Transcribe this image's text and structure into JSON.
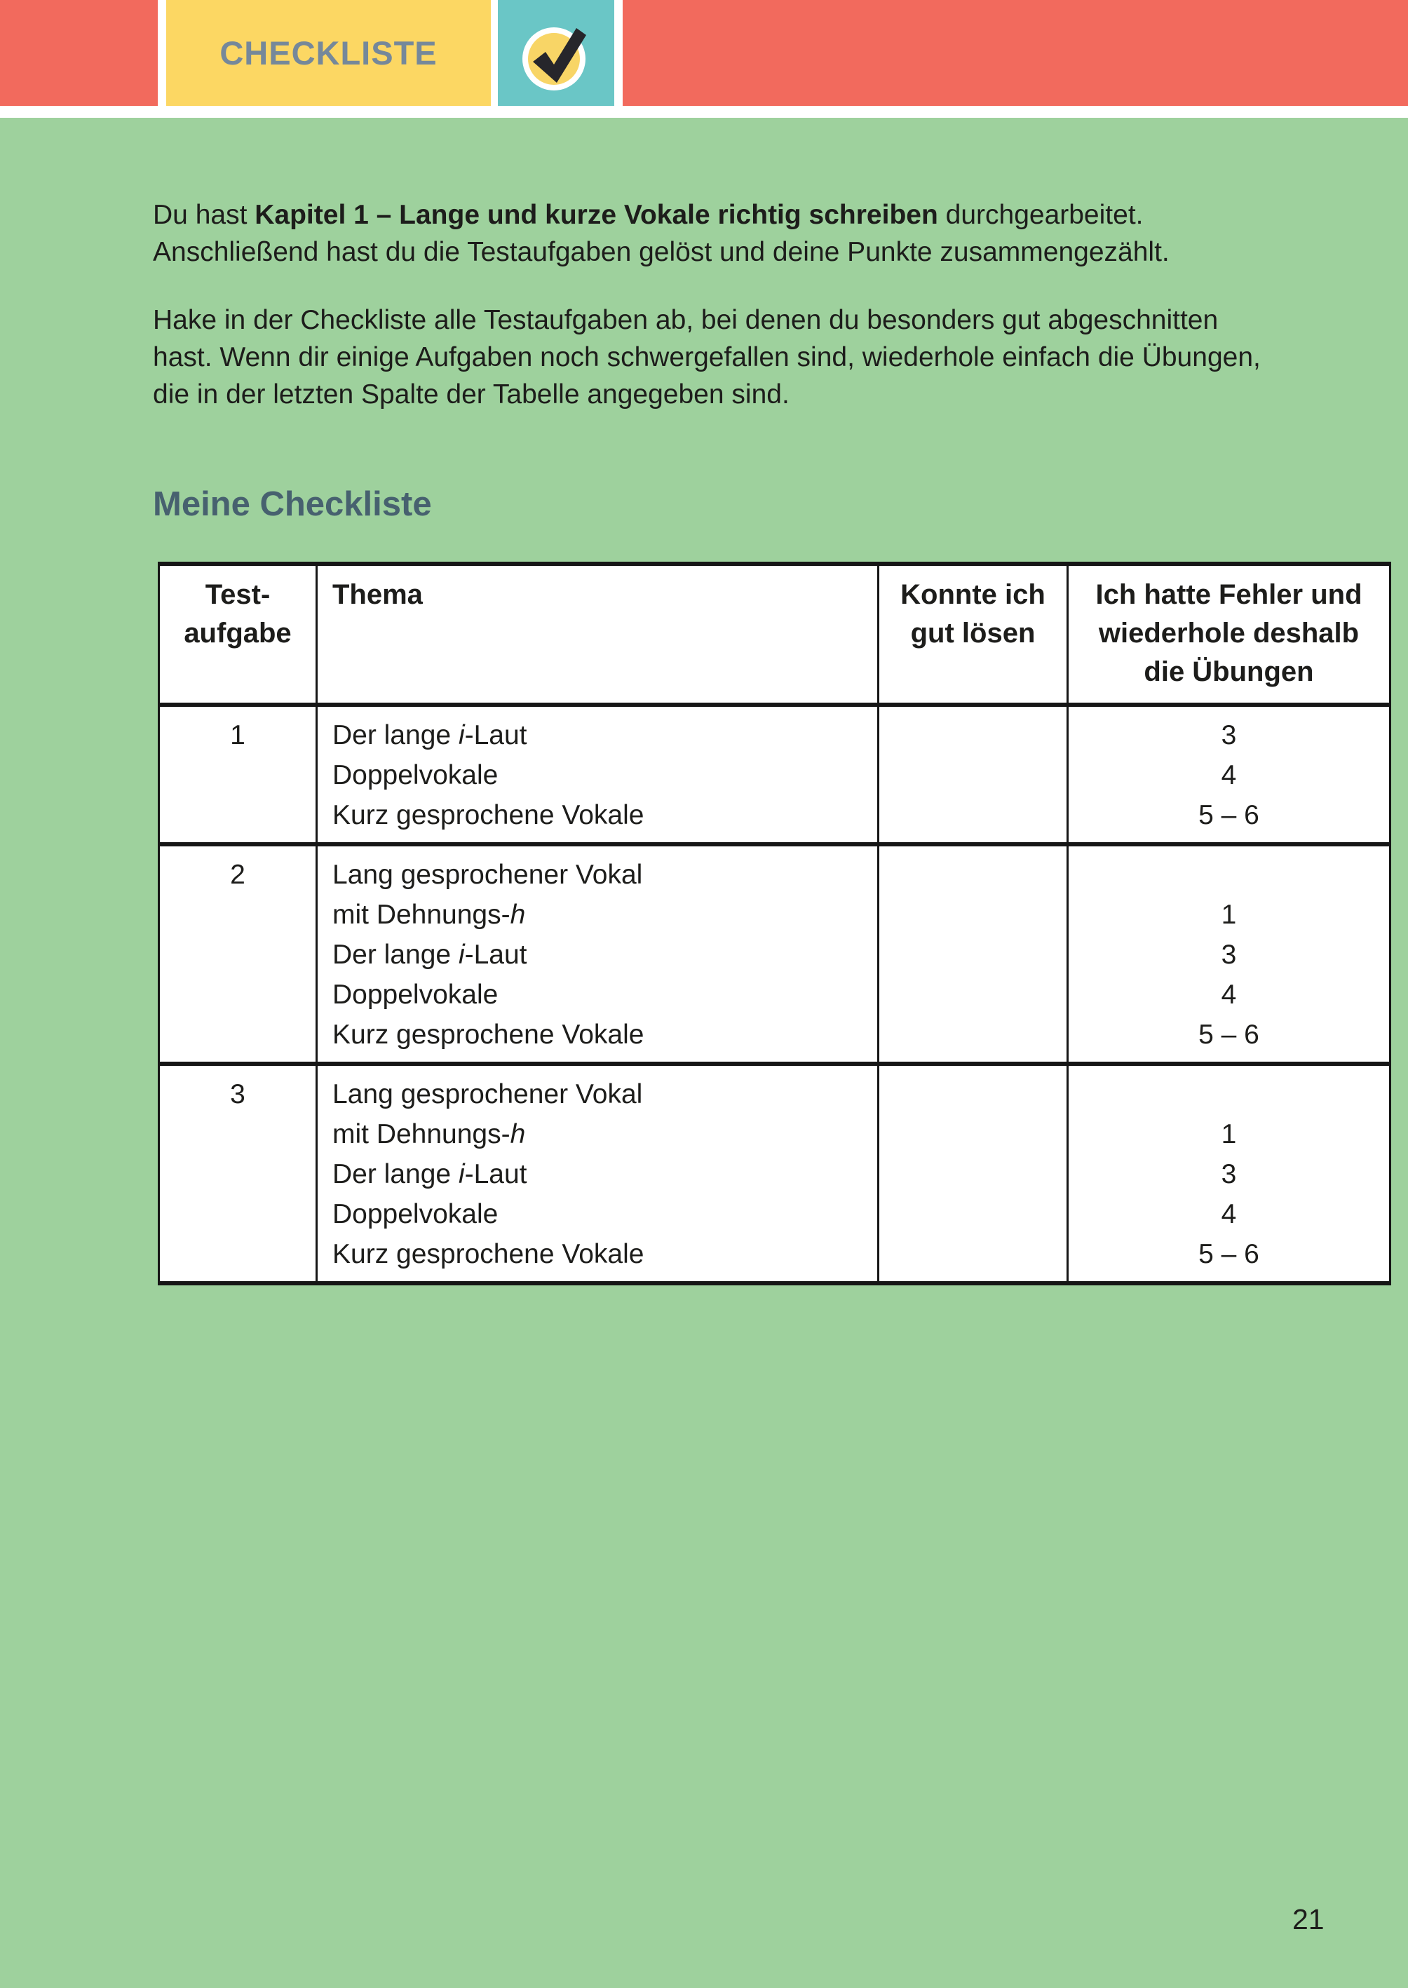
{
  "page": {
    "number": "21"
  },
  "header": {
    "banner_label": "CHECKLISTE",
    "icon": "checkmark",
    "colors": {
      "coral": "#f26a5d",
      "yellow": "#fcd763",
      "teal": "#6ac6c6",
      "label_slate": "#75889a",
      "circle_yellow": "#f8d566",
      "check_dark": "#26262b"
    }
  },
  "body_colors": {
    "background_green": "#9ed19d",
    "section_title": "#47616f",
    "text": "#1d1d1b",
    "table_border": "#161616"
  },
  "intro": {
    "p1": [
      {
        "t": "Du hast "
      },
      {
        "t": "Kapitel 1 – Lange und kurze Vokale richtig schreiben",
        "bold": true
      },
      {
        "t": " durchgearbeitet."
      },
      {
        "br": true
      },
      {
        "t": "Anschließend hast du die Testaufgaben gelöst und deine Punkte zusammengezählt."
      }
    ],
    "p2": [
      {
        "t": "Hake in der Checkliste alle Testaufgaben ab, bei denen du besonders gut abgeschnitten"
      },
      {
        "br": true
      },
      {
        "t": "hast. Wenn dir einige Aufgaben noch schwergefallen sind, wiederhole einfach die Übungen,"
      },
      {
        "br": true
      },
      {
        "t": "die in der letzten Spalte der Tabelle angegeben sind."
      }
    ]
  },
  "section": {
    "title": "Meine Checkliste"
  },
  "table": {
    "headers": [
      {
        "lines": [
          "Test-",
          "aufgabe"
        ]
      },
      {
        "lines": [
          "Thema"
        ]
      },
      {
        "lines": [
          "Konnte ich",
          "gut lösen"
        ]
      },
      {
        "lines": [
          "Ich hatte Fehler und",
          "wiederhole deshalb",
          "die Übungen"
        ]
      }
    ],
    "rows": [
      {
        "num": "1",
        "thema": [
          [
            {
              "t": "Der lange "
            },
            {
              "t": "i",
              "italic": true
            },
            {
              "t": "-Laut"
            }
          ],
          [
            {
              "t": "Doppelvokale"
            }
          ],
          [
            {
              "t": "Kurz gesprochene Vokale"
            }
          ]
        ],
        "done": "",
        "uebungen": [
          "3",
          "4",
          "5 – 6"
        ]
      },
      {
        "num": "2",
        "thema": [
          [
            {
              "t": "Lang gesprochener Vokal"
            }
          ],
          [
            {
              "t": "mit Dehnungs-"
            },
            {
              "t": "h",
              "italic": true
            }
          ],
          [
            {
              "t": "Der lange "
            },
            {
              "t": "i",
              "italic": true
            },
            {
              "t": "-Laut"
            }
          ],
          [
            {
              "t": "Doppelvokale"
            }
          ],
          [
            {
              "t": "Kurz gesprochene Vokale"
            }
          ]
        ],
        "done": "",
        "uebungen": [
          "",
          "1",
          "3",
          "4",
          "5 – 6"
        ]
      },
      {
        "num": "3",
        "thema": [
          [
            {
              "t": "Lang gesprochener Vokal"
            }
          ],
          [
            {
              "t": "mit Dehnungs-"
            },
            {
              "t": "h",
              "italic": true
            }
          ],
          [
            {
              "t": "Der lange "
            },
            {
              "t": "i",
              "italic": true
            },
            {
              "t": "-Laut"
            }
          ],
          [
            {
              "t": "Doppelvokale"
            }
          ],
          [
            {
              "t": "Kurz gesprochene Vokale"
            }
          ]
        ],
        "done": "",
        "uebungen": [
          "",
          "1",
          "3",
          "4",
          "5 – 6"
        ]
      }
    ]
  }
}
